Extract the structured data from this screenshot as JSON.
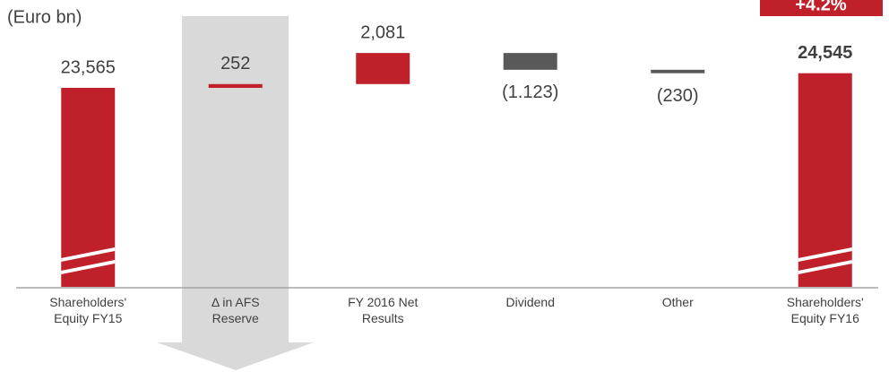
{
  "chart_data": {
    "type": "waterfall",
    "unit_label": "(Euro bn)",
    "annotation": "+4.2%",
    "categories": [
      "Shareholders' Equity FY15",
      "Δ in AFS Reserve",
      "FY 2016 Net Results",
      "Dividend",
      "Other",
      "Shareholders' Equity FY16"
    ],
    "measures": [
      "total",
      "relative",
      "relative",
      "relative",
      "relative",
      "total"
    ],
    "values": [
      23565,
      252,
      2081,
      -1123,
      -230,
      24545
    ],
    "value_labels": [
      "23,565",
      "252",
      "2,081",
      "(1.123)",
      "(230)",
      "24,545"
    ],
    "colors": {
      "total": "#c0202a",
      "increase": "#c0202a",
      "decrease": "#595959"
    }
  }
}
